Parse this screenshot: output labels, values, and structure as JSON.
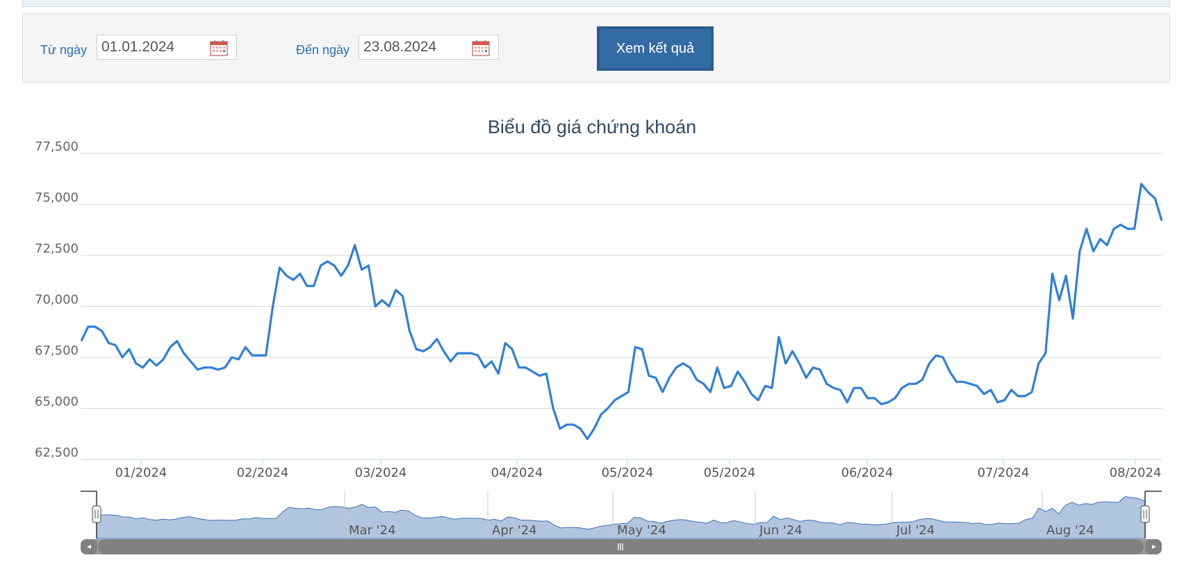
{
  "filter": {
    "from_label": "Từ ngày",
    "from_value": "01.01.2024",
    "to_label": "Đến ngày",
    "to_value": "23.08.2024",
    "submit_label": "Xem kết quả",
    "calendar_icon": "calendar-icon"
  },
  "chart_data": {
    "type": "line",
    "title": "Biểu đồ giá chứng khoán",
    "xlabel": "",
    "ylabel": "",
    "ylim": [
      62500,
      77500
    ],
    "y_ticks": [
      "77,500",
      "75,000",
      "72,500",
      "70,000",
      "67,500",
      "65,000",
      "62,500"
    ],
    "x_ticks": [
      "01/2024",
      "02/2024",
      "03/2024",
      "04/2024",
      "05/2024",
      "05/2024",
      "06/2024",
      "07/2024",
      "08/2024"
    ],
    "grid": true,
    "legend": "none",
    "line_color": "#2f7fd8",
    "navigator_labels": [
      "Mar '24",
      "Apr '24",
      "May '24",
      "Jun '24",
      "Jul '24",
      "Aug '24"
    ],
    "series": [
      {
        "values": [
          68300,
          69000,
          69000,
          68800,
          68200,
          68100,
          67500,
          67900,
          67200,
          67000,
          67400,
          67100,
          67400,
          68000,
          68300,
          67700,
          67300,
          66900,
          67000,
          67000,
          66900,
          67000,
          67500,
          67400,
          68000,
          67600,
          67600,
          67600,
          70000,
          71900,
          71500,
          71300,
          71600,
          71000,
          71000,
          72000,
          72200,
          72000,
          71500,
          72000,
          73000,
          71800,
          72000,
          70000,
          70300,
          70000,
          70800,
          70500,
          68800,
          67900,
          67800,
          68000,
          68400,
          67800,
          67300,
          67700,
          67700,
          67700,
          67600,
          67000,
          67300,
          66700,
          68200,
          67900,
          67000,
          67000,
          66800,
          66600,
          66700,
          65000,
          64000,
          64200,
          64200,
          64000,
          63500,
          64000,
          64700,
          65000,
          65400,
          65600,
          65800,
          68000,
          67900,
          66600,
          66500,
          65800,
          66500,
          67000,
          67200,
          67000,
          66400,
          66200,
          65800,
          67000,
          66000,
          66100,
          66800,
          66300,
          65700,
          65400,
          66100,
          66000,
          68500,
          67200,
          67800,
          67200,
          66500,
          67000,
          66900,
          66200,
          66000,
          65900,
          65300,
          66000,
          66000,
          65500,
          65500,
          65200,
          65300,
          65500,
          66000,
          66200,
          66200,
          66400,
          67200,
          67600,
          67500,
          66800,
          66300,
          66300,
          66200,
          66100,
          65700,
          65900,
          65300,
          65400,
          65900,
          65600,
          65600,
          65800,
          67200,
          67700,
          71600,
          70300,
          71500,
          69400,
          72700,
          73800,
          72700,
          73300,
          73000,
          73800,
          74000,
          73800,
          73800,
          76000,
          75600,
          75300,
          74200
        ]
      }
    ]
  }
}
